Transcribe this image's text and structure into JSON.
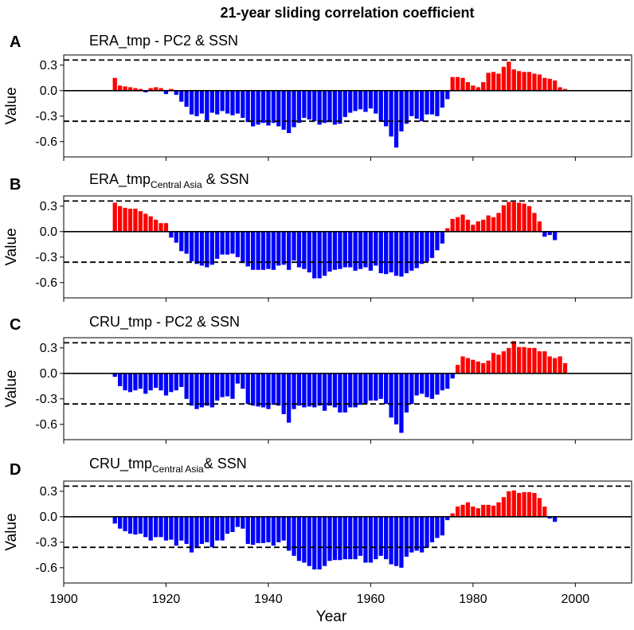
{
  "figure_title": "21-year sliding correlation coefficient",
  "x_axis_label": "Year",
  "y_axis_label": "Value",
  "colors": {
    "positive": "#ff0000",
    "negative": "#0000ff",
    "line": "#000000"
  },
  "chart_data": [
    {
      "type": "bar",
      "letter": "A",
      "title_main": "ERA_tmp - PC2 & SSN",
      "title_sub": "",
      "title_after": "",
      "xlim": [
        1900,
        2011
      ],
      "ylim": [
        -0.78,
        0.42
      ],
      "yticks": [
        0.3,
        0.0,
        -0.3,
        -0.6
      ],
      "ytick_labels": [
        "0.3",
        "0.0",
        "-0.3",
        "-0.6"
      ],
      "threshold_lines": [
        0.36,
        -0.36
      ],
      "zero_line": 0,
      "x_start": 1910,
      "values": [
        0.15,
        0.06,
        0.05,
        0.04,
        0.03,
        0.02,
        -0.02,
        0.03,
        0.04,
        0.03,
        -0.04,
        0.02,
        -0.05,
        -0.13,
        -0.19,
        -0.28,
        -0.3,
        -0.27,
        -0.35,
        -0.26,
        -0.28,
        -0.24,
        -0.27,
        -0.29,
        -0.27,
        -0.32,
        -0.37,
        -0.42,
        -0.4,
        -0.38,
        -0.41,
        -0.38,
        -0.42,
        -0.46,
        -0.5,
        -0.43,
        -0.38,
        -0.32,
        -0.34,
        -0.36,
        -0.4,
        -0.38,
        -0.37,
        -0.4,
        -0.39,
        -0.31,
        -0.26,
        -0.24,
        -0.22,
        -0.25,
        -0.21,
        -0.27,
        -0.36,
        -0.42,
        -0.54,
        -0.67,
        -0.48,
        -0.39,
        -0.3,
        -0.33,
        -0.36,
        -0.28,
        -0.28,
        -0.3,
        -0.2,
        -0.1,
        0.16,
        0.16,
        0.15,
        0.1,
        0.06,
        0.04,
        0.1,
        0.21,
        0.22,
        0.2,
        0.28,
        0.34,
        0.25,
        0.23,
        0.22,
        0.22,
        0.2,
        0.19,
        0.15,
        0.14,
        0.12,
        0.04,
        0.02
      ]
    },
    {
      "type": "bar",
      "letter": "B",
      "title_main": "ERA_tmp",
      "title_sub": "Central Asia",
      "title_after": " & SSN",
      "xlim": [
        1900,
        2011
      ],
      "ylim": [
        -0.78,
        0.42
      ],
      "yticks": [
        0.3,
        0.0,
        -0.3,
        -0.6
      ],
      "ytick_labels": [
        "0.3",
        "0.0",
        "-0.3",
        "-0.6"
      ],
      "threshold_lines": [
        0.36,
        -0.36
      ],
      "zero_line": 0,
      "x_start": 1910,
      "values": [
        0.34,
        0.3,
        0.28,
        0.27,
        0.27,
        0.24,
        0.21,
        0.18,
        0.14,
        0.1,
        0.1,
        -0.07,
        -0.13,
        -0.23,
        -0.26,
        -0.35,
        -0.38,
        -0.4,
        -0.42,
        -0.39,
        -0.32,
        -0.27,
        -0.27,
        -0.26,
        -0.3,
        -0.37,
        -0.41,
        -0.45,
        -0.45,
        -0.45,
        -0.44,
        -0.45,
        -0.4,
        -0.39,
        -0.45,
        -0.34,
        -0.42,
        -0.44,
        -0.48,
        -0.55,
        -0.55,
        -0.52,
        -0.47,
        -0.45,
        -0.44,
        -0.42,
        -0.42,
        -0.46,
        -0.44,
        -0.42,
        -0.46,
        -0.4,
        -0.49,
        -0.5,
        -0.48,
        -0.52,
        -0.53,
        -0.49,
        -0.46,
        -0.43,
        -0.38,
        -0.35,
        -0.31,
        -0.22,
        -0.14,
        0.04,
        0.15,
        0.17,
        0.2,
        0.14,
        0.08,
        0.12,
        0.14,
        0.19,
        0.17,
        0.22,
        0.31,
        0.35,
        0.35,
        0.34,
        0.33,
        0.3,
        0.22,
        0.12,
        -0.06,
        -0.04,
        -0.1
      ]
    },
    {
      "type": "bar",
      "letter": "C",
      "title_main": "CRU_tmp - PC2 & SSN",
      "title_sub": "",
      "title_after": "",
      "xlim": [
        1900,
        2011
      ],
      "ylim": [
        -0.78,
        0.42
      ],
      "yticks": [
        0.3,
        0.0,
        -0.3,
        -0.6
      ],
      "ytick_labels": [
        "0.3",
        "0.0",
        "-0.3",
        "-0.6"
      ],
      "threshold_lines": [
        0.36,
        -0.36
      ],
      "zero_line": 0,
      "x_start": 1910,
      "values": [
        -0.04,
        -0.15,
        -0.2,
        -0.22,
        -0.2,
        -0.18,
        -0.24,
        -0.2,
        -0.17,
        -0.2,
        -0.26,
        -0.22,
        -0.2,
        -0.16,
        -0.3,
        -0.38,
        -0.42,
        -0.4,
        -0.38,
        -0.4,
        -0.32,
        -0.28,
        -0.27,
        -0.3,
        -0.12,
        -0.18,
        -0.36,
        -0.38,
        -0.39,
        -0.4,
        -0.42,
        -0.37,
        -0.38,
        -0.48,
        -0.58,
        -0.42,
        -0.38,
        -0.4,
        -0.39,
        -0.4,
        -0.38,
        -0.44,
        -0.38,
        -0.4,
        -0.46,
        -0.46,
        -0.4,
        -0.4,
        -0.37,
        -0.36,
        -0.32,
        -0.32,
        -0.3,
        -0.36,
        -0.52,
        -0.6,
        -0.7,
        -0.46,
        -0.36,
        -0.26,
        -0.24,
        -0.28,
        -0.3,
        -0.25,
        -0.2,
        -0.18,
        -0.06,
        0.1,
        0.2,
        0.18,
        0.16,
        0.14,
        0.12,
        0.15,
        0.24,
        0.22,
        0.26,
        0.3,
        0.38,
        0.31,
        0.31,
        0.3,
        0.3,
        0.26,
        0.26,
        0.2,
        0.18,
        0.2,
        0.12
      ]
    },
    {
      "type": "bar",
      "letter": "D",
      "title_main": "CRU_tmp",
      "title_sub": "Central Asia",
      "title_after": "& SSN",
      "xlim": [
        1900,
        2011
      ],
      "ylim": [
        -0.78,
        0.42
      ],
      "yticks": [
        0.3,
        0.0,
        -0.3,
        -0.6
      ],
      "ytick_labels": [
        "0.3",
        "0.0",
        "-0.3",
        "-0.6"
      ],
      "threshold_lines": [
        0.36,
        -0.36
      ],
      "zero_line": 0,
      "x_start": 1910,
      "values": [
        -0.08,
        -0.14,
        -0.17,
        -0.2,
        -0.21,
        -0.2,
        -0.24,
        -0.28,
        -0.24,
        -0.24,
        -0.28,
        -0.27,
        -0.34,
        -0.28,
        -0.32,
        -0.42,
        -0.37,
        -0.32,
        -0.3,
        -0.36,
        -0.28,
        -0.28,
        -0.2,
        -0.18,
        -0.12,
        -0.14,
        -0.32,
        -0.33,
        -0.31,
        -0.31,
        -0.3,
        -0.34,
        -0.3,
        -0.28,
        -0.4,
        -0.46,
        -0.52,
        -0.54,
        -0.58,
        -0.62,
        -0.62,
        -0.58,
        -0.52,
        -0.51,
        -0.51,
        -0.5,
        -0.5,
        -0.5,
        -0.46,
        -0.54,
        -0.54,
        -0.5,
        -0.46,
        -0.5,
        -0.56,
        -0.58,
        -0.6,
        -0.47,
        -0.42,
        -0.4,
        -0.42,
        -0.36,
        -0.3,
        -0.25,
        -0.22,
        -0.04,
        0.04,
        0.12,
        0.14,
        0.17,
        0.12,
        0.1,
        0.14,
        0.14,
        0.13,
        0.17,
        0.23,
        0.3,
        0.31,
        0.28,
        0.29,
        0.29,
        0.28,
        0.22,
        0.12,
        -0.02,
        -0.06
      ]
    }
  ],
  "x_axis": {
    "ticks": [
      1900,
      1920,
      1940,
      1960,
      1980,
      2000
    ],
    "tick_labels": [
      "1900",
      "1920",
      "1940",
      "1960",
      "1980",
      "2000"
    ]
  }
}
